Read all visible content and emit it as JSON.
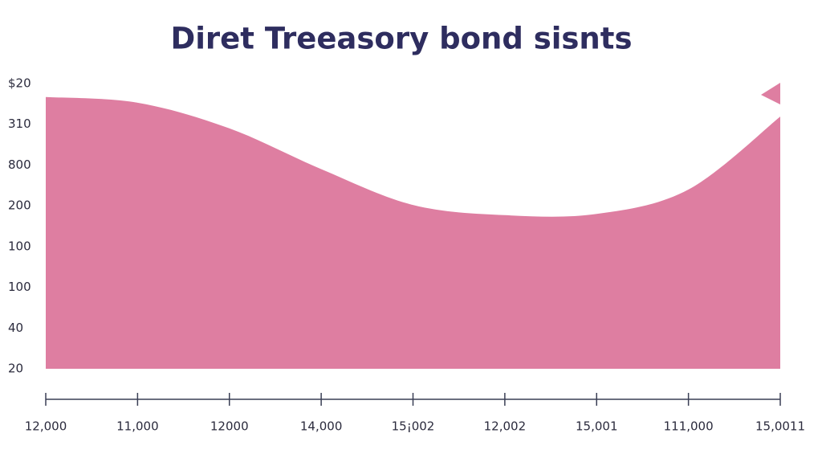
{
  "chart_data": {
    "type": "area",
    "title": "Diret Treeasory bond sisnts",
    "categories": [
      "12,000",
      "11,000",
      "12000",
      "14,000",
      "15¡002",
      "12,002",
      "15,001",
      "111,000",
      "15,0011"
    ],
    "values": [
      6.67,
      6.53,
      5.9,
      4.9,
      4.02,
      3.77,
      3.8,
      4.4,
      6.19
    ],
    "color": "#de7ea1",
    "ylim": [
      0,
      7
    ],
    "yticks": [
      {
        "value": 0,
        "label": "20"
      },
      {
        "value": 1,
        "label": "40"
      },
      {
        "value": 2,
        "label": "100"
      },
      {
        "value": 3,
        "label": "100"
      },
      {
        "value": 4,
        "label": "200"
      },
      {
        "value": 5,
        "label": "800"
      },
      {
        "value": 6,
        "label": "310"
      },
      {
        "value": 7,
        "label": "$20"
      }
    ]
  }
}
